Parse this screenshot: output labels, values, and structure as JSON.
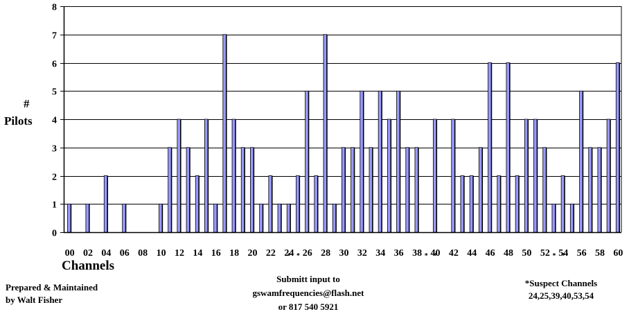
{
  "chart_data": {
    "type": "bar",
    "title": "",
    "ylabel_symbol": "#",
    "ylabel": "Pilots",
    "xlabel": "Channels",
    "ylim": [
      0,
      8
    ],
    "yticks": [
      "0",
      "1",
      "2",
      "3",
      "4",
      "5",
      "6",
      "7",
      "8"
    ],
    "grid": "horizontal",
    "bar_color": "#9999ff",
    "categories": [
      "00",
      "01",
      "02",
      "03",
      "04",
      "05",
      "06",
      "07",
      "08",
      "09",
      "10",
      "11",
      "12",
      "13",
      "14",
      "15",
      "16",
      "17",
      "18",
      "19",
      "20",
      "21",
      "22",
      "23",
      "24",
      "25",
      "26",
      "27",
      "28",
      "29",
      "30",
      "31",
      "32",
      "33",
      "34",
      "35",
      "36",
      "37",
      "38",
      "39",
      "40",
      "41",
      "42",
      "43",
      "44",
      "45",
      "46",
      "47",
      "48",
      "49",
      "50",
      "51",
      "52",
      "53",
      "54",
      "55",
      "56",
      "57",
      "58",
      "59",
      "60"
    ],
    "x_tick_labels": [
      "00",
      "02",
      "04",
      "06",
      "08",
      "10",
      "12",
      "14",
      "16",
      "18",
      "20",
      "22",
      "24",
      "26",
      "28",
      "30",
      "32",
      "34",
      "36",
      "38",
      "40",
      "42",
      "44",
      "46",
      "48",
      "50",
      "52",
      "54",
      "56",
      "58",
      "60"
    ],
    "values": [
      1,
      0,
      1,
      0,
      2,
      0,
      1,
      0,
      0,
      0,
      1,
      3,
      4,
      3,
      2,
      4,
      1,
      7,
      4,
      3,
      3,
      1,
      2,
      1,
      1,
      2,
      5,
      2,
      7,
      1,
      3,
      3,
      5,
      3,
      5,
      4,
      5,
      3,
      3,
      0,
      4,
      0,
      4,
      2,
      2,
      3,
      6,
      2,
      6,
      2,
      4,
      4,
      3,
      1,
      2,
      1,
      5,
      3,
      3,
      4,
      6
    ],
    "suspect_marks": [
      "24",
      "25",
      "39",
      "40",
      "53",
      "54"
    ],
    "suspect_symbol": "*"
  },
  "footer": {
    "credit_line1": "Prepared & Maintained",
    "credit_line2": "by Walt Fisher",
    "submit_line1": "Submitt input to",
    "submit_line2": "gswamfrequencies@flash.net",
    "submit_line3": "or 817 540 5921",
    "suspect_title": "*Suspect Channels",
    "suspect_list": "24,25,39,40,53,54"
  }
}
